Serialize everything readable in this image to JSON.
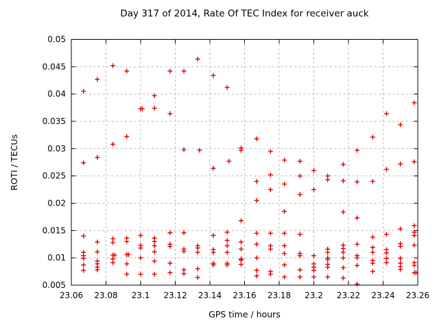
{
  "chart_data": {
    "type": "scatter",
    "title": "Day 317 of 2014, Rate Of TEC Index for receiver auck",
    "xlabel": "GPS time / hours",
    "ylabel": "ROTI / TECUs",
    "xlim": [
      23.06,
      23.26
    ],
    "ylim": [
      0.005,
      0.05
    ],
    "x_tick_labels": [
      "23.06",
      "23.08",
      "23.1",
      "23.12",
      "23.14",
      "23.16",
      "23.18",
      "23.2",
      "23.22",
      "23.24",
      "23.26"
    ],
    "x_ticks": [
      23.06,
      23.08,
      23.1,
      23.12,
      23.14,
      23.16,
      23.18,
      23.2,
      23.22,
      23.24,
      23.26
    ],
    "y_tick_labels": [
      "0.005",
      "0.01",
      "0.015",
      "0.02",
      "0.025",
      "0.03",
      "0.035",
      "0.04",
      "0.045",
      "0.05"
    ],
    "y_ticks": [
      0.005,
      0.01,
      0.015,
      0.02,
      0.025,
      0.03,
      0.035,
      0.04,
      0.045,
      0.05
    ],
    "grid": true,
    "legend": "none",
    "marker": {
      "shape": "plus",
      "color": "#e00000",
      "size": 7
    },
    "colors": {
      "grid": "#b8b8b8",
      "axis": "#000000",
      "background": "#ffffff"
    },
    "points": [
      [
        23.067,
        0.0405
      ],
      [
        23.067,
        0.0274
      ],
      [
        23.067,
        0.014
      ],
      [
        23.067,
        0.011
      ],
      [
        23.067,
        0.0104
      ],
      [
        23.067,
        0.0099
      ],
      [
        23.067,
        0.0087
      ],
      [
        23.067,
        0.0077
      ],
      [
        23.075,
        0.0427
      ],
      [
        23.075,
        0.0284
      ],
      [
        23.075,
        0.0129
      ],
      [
        23.075,
        0.0111
      ],
      [
        23.075,
        0.0094
      ],
      [
        23.075,
        0.0089
      ],
      [
        23.075,
        0.0083
      ],
      [
        23.075,
        0.0078
      ],
      [
        23.084,
        0.0452
      ],
      [
        23.084,
        0.0308
      ],
      [
        23.084,
        0.0135
      ],
      [
        23.084,
        0.0128
      ],
      [
        23.084,
        0.0105
      ],
      [
        23.085,
        0.0105
      ],
      [
        23.084,
        0.0098
      ],
      [
        23.084,
        0.0091
      ],
      [
        23.092,
        0.0442
      ],
      [
        23.092,
        0.0322
      ],
      [
        23.092,
        0.0136
      ],
      [
        23.092,
        0.013
      ],
      [
        23.092,
        0.0106
      ],
      [
        23.093,
        0.0106
      ],
      [
        23.092,
        0.0089
      ],
      [
        23.092,
        0.007
      ],
      [
        23.1,
        0.0373
      ],
      [
        23.101,
        0.0373
      ],
      [
        23.1,
        0.0141
      ],
      [
        23.1,
        0.0123
      ],
      [
        23.1,
        0.0118
      ],
      [
        23.1,
        0.01
      ],
      [
        23.1,
        0.007
      ],
      [
        23.108,
        0.0397
      ],
      [
        23.108,
        0.0374
      ],
      [
        23.108,
        0.0136
      ],
      [
        23.108,
        0.013
      ],
      [
        23.108,
        0.0122
      ],
      [
        23.108,
        0.0111
      ],
      [
        23.108,
        0.0094
      ],
      [
        23.108,
        0.007
      ],
      [
        23.117,
        0.0442
      ],
      [
        23.117,
        0.0364
      ],
      [
        23.117,
        0.0146
      ],
      [
        23.117,
        0.0125
      ],
      [
        23.117,
        0.0121
      ],
      [
        23.117,
        0.009
      ],
      [
        23.117,
        0.0073
      ],
      [
        23.125,
        0.0442
      ],
      [
        23.125,
        0.0298
      ],
      [
        23.125,
        0.0146
      ],
      [
        23.125,
        0.0116
      ],
      [
        23.125,
        0.0112
      ],
      [
        23.125,
        0.0078
      ],
      [
        23.125,
        0.0071
      ],
      [
        23.133,
        0.0464
      ],
      [
        23.134,
        0.0297
      ],
      [
        23.133,
        0.0122
      ],
      [
        23.133,
        0.0118
      ],
      [
        23.133,
        0.011
      ],
      [
        23.133,
        0.008
      ],
      [
        23.133,
        0.0064
      ],
      [
        23.142,
        0.0434
      ],
      [
        23.142,
        0.0264
      ],
      [
        23.142,
        0.0141
      ],
      [
        23.142,
        0.0115
      ],
      [
        23.142,
        0.011
      ],
      [
        23.142,
        0.009
      ],
      [
        23.142,
        0.0087
      ],
      [
        23.15,
        0.0412
      ],
      [
        23.151,
        0.0277
      ],
      [
        23.15,
        0.0147
      ],
      [
        23.15,
        0.0132
      ],
      [
        23.15,
        0.0122
      ],
      [
        23.15,
        0.011
      ],
      [
        23.15,
        0.009
      ],
      [
        23.15,
        0.0087
      ],
      [
        23.158,
        0.0301
      ],
      [
        23.158,
        0.0297
      ],
      [
        23.158,
        0.0168
      ],
      [
        23.158,
        0.0129
      ],
      [
        23.158,
        0.0116
      ],
      [
        23.158,
        0.0098
      ],
      [
        23.158,
        0.0096
      ],
      [
        23.158,
        0.0088
      ],
      [
        23.167,
        0.0318
      ],
      [
        23.167,
        0.024
      ],
      [
        23.167,
        0.0205
      ],
      [
        23.167,
        0.0145
      ],
      [
        23.167,
        0.0125
      ],
      [
        23.167,
        0.01
      ],
      [
        23.167,
        0.0077
      ],
      [
        23.167,
        0.0067
      ],
      [
        23.175,
        0.0295
      ],
      [
        23.175,
        0.0252
      ],
      [
        23.175,
        0.0225
      ],
      [
        23.175,
        0.0145
      ],
      [
        23.175,
        0.0122
      ],
      [
        23.175,
        0.0116
      ],
      [
        23.175,
        0.0075
      ],
      [
        23.175,
        0.007
      ],
      [
        23.183,
        0.0279
      ],
      [
        23.183,
        0.0235
      ],
      [
        23.183,
        0.0185
      ],
      [
        23.183,
        0.0145
      ],
      [
        23.183,
        0.0122
      ],
      [
        23.183,
        0.0108
      ],
      [
        23.183,
        0.0087
      ],
      [
        23.183,
        0.0065
      ],
      [
        23.192,
        0.0277
      ],
      [
        23.192,
        0.025
      ],
      [
        23.192,
        0.0216
      ],
      [
        23.192,
        0.0143
      ],
      [
        23.192,
        0.0108
      ],
      [
        23.192,
        0.0104
      ],
      [
        23.192,
        0.0078
      ],
      [
        23.192,
        0.0065
      ],
      [
        23.2,
        0.026
      ],
      [
        23.2,
        0.0225
      ],
      [
        23.2,
        0.0104
      ],
      [
        23.2,
        0.0089
      ],
      [
        23.2,
        0.0083
      ],
      [
        23.2,
        0.0077
      ],
      [
        23.2,
        0.0065
      ],
      [
        23.208,
        0.025
      ],
      [
        23.208,
        0.0243
      ],
      [
        23.208,
        0.0116
      ],
      [
        23.208,
        0.011
      ],
      [
        23.208,
        0.01
      ],
      [
        23.208,
        0.0097
      ],
      [
        23.208,
        0.0088
      ],
      [
        23.208,
        0.0083
      ],
      [
        23.208,
        0.0065
      ],
      [
        23.217,
        0.0271
      ],
      [
        23.217,
        0.0241
      ],
      [
        23.217,
        0.0184
      ],
      [
        23.217,
        0.0123
      ],
      [
        23.217,
        0.0117
      ],
      [
        23.217,
        0.011
      ],
      [
        23.217,
        0.01
      ],
      [
        23.217,
        0.0082
      ],
      [
        23.217,
        0.0063
      ],
      [
        23.225,
        0.0297
      ],
      [
        23.225,
        0.0239
      ],
      [
        23.225,
        0.0173
      ],
      [
        23.225,
        0.0125
      ],
      [
        23.225,
        0.0104
      ],
      [
        23.225,
        0.01
      ],
      [
        23.225,
        0.0086
      ],
      [
        23.225,
        0.0052
      ],
      [
        23.234,
        0.0321
      ],
      [
        23.234,
        0.024
      ],
      [
        23.234,
        0.0138
      ],
      [
        23.234,
        0.0119
      ],
      [
        23.234,
        0.011
      ],
      [
        23.234,
        0.0095
      ],
      [
        23.234,
        0.009
      ],
      [
        23.234,
        0.0075
      ],
      [
        23.242,
        0.0364
      ],
      [
        23.242,
        0.0262
      ],
      [
        23.242,
        0.0143
      ],
      [
        23.242,
        0.0115
      ],
      [
        23.242,
        0.0109
      ],
      [
        23.242,
        0.0099
      ],
      [
        23.242,
        0.0091
      ],
      [
        23.25,
        0.0344
      ],
      [
        23.25,
        0.0272
      ],
      [
        23.25,
        0.0153
      ],
      [
        23.25,
        0.0126
      ],
      [
        23.25,
        0.0121
      ],
      [
        23.25,
        0.0099
      ],
      [
        23.25,
        0.009
      ],
      [
        23.25,
        0.0084
      ],
      [
        23.25,
        0.0079
      ],
      [
        23.258,
        0.0384
      ],
      [
        23.258,
        0.0276
      ],
      [
        23.258,
        0.0159
      ],
      [
        23.258,
        0.0147
      ],
      [
        23.258,
        0.0141
      ],
      [
        23.258,
        0.0123
      ],
      [
        23.258,
        0.0091
      ],
      [
        23.258,
        0.0086
      ],
      [
        23.258,
        0.0073
      ],
      [
        23.259,
        0.0073
      ]
    ]
  }
}
